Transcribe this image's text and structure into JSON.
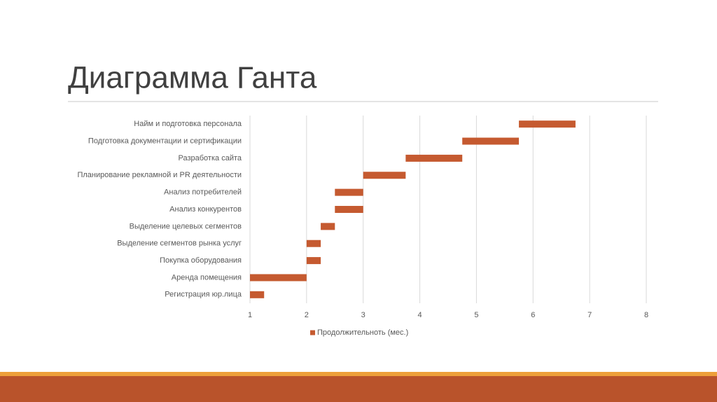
{
  "chart_data": {
    "type": "gantt",
    "title": "Диаграмма Ганта",
    "categories": [
      "Найм и подготовка персонала",
      "Подготовка документации и сертификации",
      "Разработка сайта",
      "Планирование рекламной и PR деятельности",
      "Анализ потребителей",
      "Анализ конкурентов",
      "Выделение целевых сегментов",
      "Выделение сегментов рынка услуг",
      "Покупка оборудования",
      "Аренда помещения",
      "Регистрация юр.лица"
    ],
    "starts": [
      5.75,
      4.75,
      3.75,
      3,
      2.5,
      2.5,
      2.25,
      2,
      2,
      1,
      1
    ],
    "series": [
      {
        "name": "Продолжительноть (мес.)",
        "color": "#c55a30",
        "values": [
          1,
          1,
          1,
          0.75,
          0.5,
          0.5,
          0.25,
          0.25,
          0.25,
          1,
          0.25
        ]
      }
    ],
    "xlim": [
      1,
      8
    ],
    "xticks": [
      1,
      2,
      3,
      4,
      5,
      6,
      7,
      8
    ],
    "grid": true,
    "legend": "bottom"
  }
}
